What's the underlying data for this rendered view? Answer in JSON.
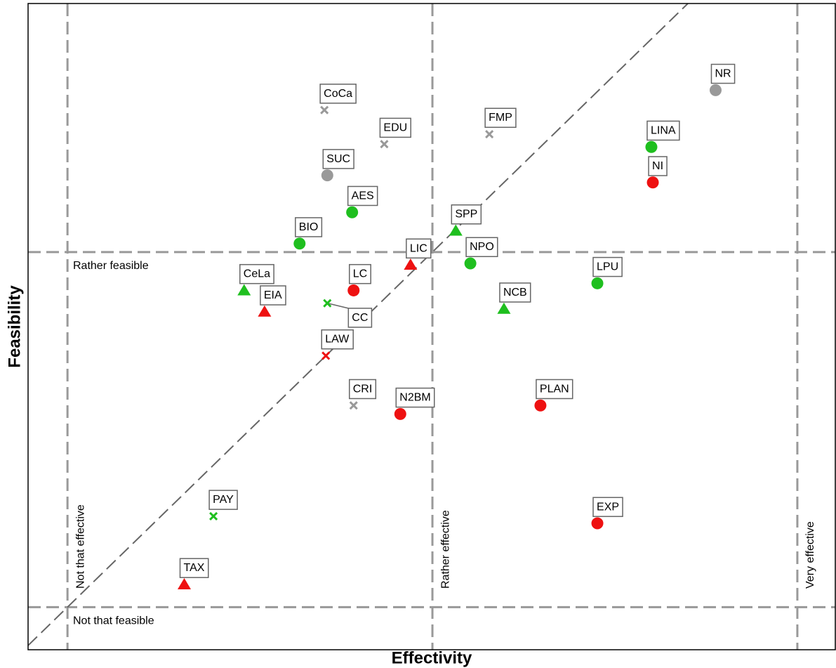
{
  "chart_data": {
    "type": "scatter",
    "x_label": "Effectivity",
    "y_label": "Feasibility",
    "xlim": [
      -0.27,
      5.26
    ],
    "ylim": [
      -0.3,
      4.25
    ],
    "identity_line": true,
    "vlines": [
      {
        "value": 0,
        "label": "Not that effective"
      },
      {
        "value": 2.5,
        "label": "Rather effective"
      },
      {
        "value": 5,
        "label": "Very effective"
      }
    ],
    "hlines": [
      {
        "value": 0,
        "label": "Not that feasible"
      },
      {
        "value": 2.5,
        "label": "Rather feasible"
      }
    ],
    "points": [
      {
        "label": "NR",
        "x": 4.44,
        "y": 3.64,
        "marker": "circle",
        "color": "#999999"
      },
      {
        "label": "CoCa",
        "x": 1.76,
        "y": 3.5,
        "marker": "x",
        "color": "#999999"
      },
      {
        "label": "FMP",
        "x": 2.89,
        "y": 3.33,
        "marker": "x",
        "color": "#999999"
      },
      {
        "label": "EDU",
        "x": 2.17,
        "y": 3.26,
        "marker": "x",
        "color": "#999999"
      },
      {
        "label": "LINA",
        "x": 4.0,
        "y": 3.24,
        "marker": "circle",
        "color": "#1fbf1f"
      },
      {
        "label": "SUC",
        "x": 1.78,
        "y": 3.04,
        "marker": "circle",
        "color": "#999999"
      },
      {
        "label": "NI",
        "x": 4.01,
        "y": 2.99,
        "marker": "circle",
        "color": "#ee1111"
      },
      {
        "label": "AES",
        "x": 1.95,
        "y": 2.78,
        "marker": "circle",
        "color": "#1fbf1f"
      },
      {
        "label": "SPP",
        "x": 2.66,
        "y": 2.65,
        "marker": "triangle",
        "color": "#1fbf1f"
      },
      {
        "label": "BIO",
        "x": 1.59,
        "y": 2.56,
        "marker": "circle",
        "color": "#1fbf1f"
      },
      {
        "label": "LIC",
        "x": 2.35,
        "y": 2.41,
        "marker": "triangle",
        "color": "#ee1111"
      },
      {
        "label": "NPO",
        "x": 2.76,
        "y": 2.42,
        "marker": "circle",
        "color": "#1fbf1f"
      },
      {
        "label": "LPU",
        "x": 3.63,
        "y": 2.28,
        "marker": "circle",
        "color": "#1fbf1f"
      },
      {
        "label": "CeLa",
        "x": 1.21,
        "y": 2.23,
        "marker": "triangle",
        "color": "#1fbf1f"
      },
      {
        "label": "LC",
        "x": 1.96,
        "y": 2.23,
        "marker": "circle",
        "color": "#ee1111"
      },
      {
        "label": "CC",
        "x": 1.78,
        "y": 2.14,
        "marker": "x",
        "color": "#1fbf1f"
      },
      {
        "label": "EIA",
        "x": 1.35,
        "y": 2.08,
        "marker": "triangle",
        "color": "#ee1111"
      },
      {
        "label": "NCB",
        "x": 2.99,
        "y": 2.1,
        "marker": "triangle",
        "color": "#1fbf1f"
      },
      {
        "label": "LAW",
        "x": 1.77,
        "y": 1.77,
        "marker": "x",
        "color": "#ee1111"
      },
      {
        "label": "CRI",
        "x": 1.96,
        "y": 1.42,
        "marker": "x",
        "color": "#999999"
      },
      {
        "label": "N2BM",
        "x": 2.28,
        "y": 1.36,
        "marker": "circle",
        "color": "#ee1111"
      },
      {
        "label": "PLAN",
        "x": 3.24,
        "y": 1.42,
        "marker": "circle",
        "color": "#ee1111"
      },
      {
        "label": "PAY",
        "x": 1.0,
        "y": 0.64,
        "marker": "x",
        "color": "#1fbf1f"
      },
      {
        "label": "EXP",
        "x": 3.63,
        "y": 0.59,
        "marker": "circle",
        "color": "#ee1111"
      },
      {
        "label": "TAX",
        "x": 0.8,
        "y": 0.16,
        "marker": "triangle",
        "color": "#ee1111"
      }
    ]
  }
}
